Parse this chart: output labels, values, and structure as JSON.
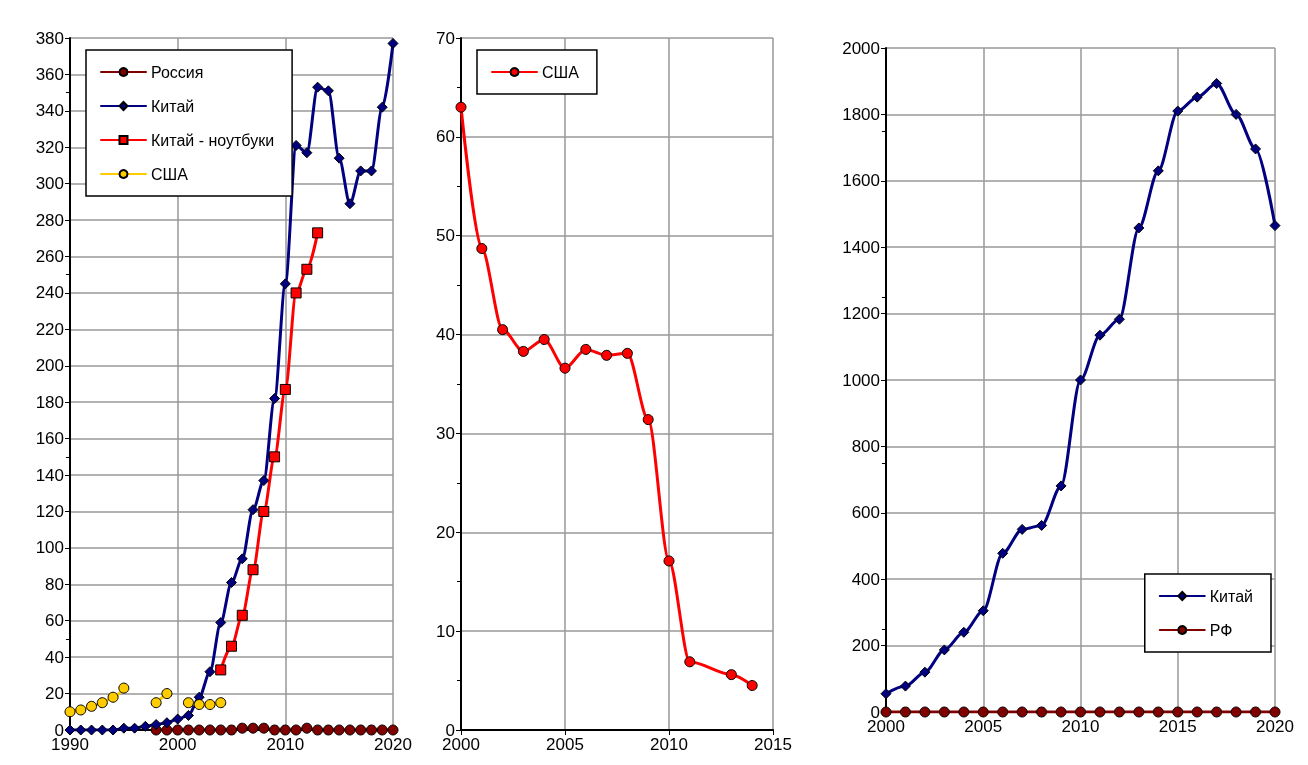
{
  "chart_data": [
    {
      "type": "line",
      "x": [
        1990,
        1991,
        1992,
        1993,
        1994,
        1995,
        1996,
        1997,
        1998,
        1999,
        2000,
        2001,
        2002,
        2003,
        2004,
        2005,
        2006,
        2007,
        2008,
        2009,
        2010,
        2011,
        2012,
        2013,
        2014,
        2015,
        2016,
        2017,
        2018,
        2019,
        2020
      ],
      "xlim": [
        1990,
        2020
      ],
      "xticks": [
        1990,
        2000,
        2010,
        2020
      ],
      "ylim": [
        0,
        380
      ],
      "yticks": [
        0,
        20,
        40,
        60,
        80,
        100,
        120,
        140,
        160,
        180,
        200,
        220,
        240,
        260,
        280,
        300,
        320,
        340,
        360,
        380
      ],
      "grid": true,
      "legend": "top left",
      "series": [
        {
          "name": "Россия",
          "color": "#800000",
          "marker": "circle",
          "x": [
            1998,
            1999,
            2000,
            2001,
            2002,
            2003,
            2004,
            2005,
            2006,
            2007,
            2008,
            2009,
            2010,
            2011,
            2012,
            2013,
            2014,
            2015,
            2016,
            2017,
            2018,
            2019,
            2020
          ],
          "values": [
            0,
            0,
            0,
            0,
            0,
            0,
            0,
            0,
            1,
            1,
            1,
            0,
            0,
            0,
            1,
            0,
            0,
            0,
            0,
            0,
            0,
            0,
            0
          ]
        },
        {
          "name": "Китай",
          "color": "#000080",
          "marker": "diamond",
          "values": [
            0,
            0,
            0,
            0,
            0,
            1,
            1,
            2,
            3,
            4,
            6,
            8,
            18,
            32,
            59,
            81,
            94,
            121,
            137,
            182,
            245,
            321,
            317,
            353,
            351,
            314,
            289,
            307,
            307,
            342,
            377
          ]
        },
        {
          "name": "Китай - ноутбуки",
          "color": "#ff0000",
          "marker": "square",
          "x": [
            2004,
            2005,
            2006,
            2007,
            2008,
            2009,
            2010,
            2011,
            2012,
            2013
          ],
          "values": [
            33,
            46,
            63,
            88,
            120,
            150,
            187,
            240,
            253,
            273
          ]
        },
        {
          "name": "США",
          "color": "#ffcc00",
          "marker": "circle",
          "x": [
            1990,
            1991,
            1992,
            1993,
            1994,
            1995,
            1996,
            1997,
            1998,
            1999,
            2000,
            2001,
            2002,
            2003,
            2004
          ],
          "values": [
            10,
            11,
            13,
            15,
            18,
            23,
            null,
            null,
            15,
            20,
            null,
            15,
            14,
            14,
            15
          ]
        }
      ]
    },
    {
      "type": "line",
      "xlim": [
        2000,
        2015
      ],
      "xticks": [
        2000,
        2005,
        2010,
        2015
      ],
      "ylim": [
        0,
        70
      ],
      "yticks": [
        0,
        10,
        20,
        30,
        40,
        50,
        60,
        70
      ],
      "grid": true,
      "legend": "top left",
      "series": [
        {
          "name": "США",
          "color": "#ff0000",
          "marker": "circle",
          "x": [
            2000,
            2001,
            2002,
            2003,
            2004,
            2005,
            2006,
            2007,
            2008,
            2009,
            2010,
            2011,
            2013,
            2014
          ],
          "values": [
            63,
            48.7,
            40.5,
            38.3,
            39.5,
            36.6,
            38.5,
            37.9,
            38.1,
            31.4,
            17.1,
            6.9,
            5.6,
            4.5
          ]
        }
      ]
    },
    {
      "type": "line",
      "x": [
        2000,
        2001,
        2002,
        2003,
        2004,
        2005,
        2006,
        2007,
        2008,
        2009,
        2010,
        2011,
        2012,
        2013,
        2014,
        2015,
        2016,
        2017,
        2018,
        2019,
        2020
      ],
      "xlim": [
        2000,
        2020
      ],
      "xticks": [
        2000,
        2005,
        2010,
        2015,
        2020
      ],
      "ylim": [
        0,
        2000
      ],
      "yticks": [
        0,
        200,
        400,
        600,
        800,
        1000,
        1200,
        1400,
        1600,
        1800,
        2000
      ],
      "grid": true,
      "legend": "bottom right",
      "series": [
        {
          "name": "Китай",
          "color": "#000080",
          "marker": "diamond",
          "values": [
            55,
            78,
            120,
            187,
            240,
            305,
            478,
            550,
            562,
            681,
            1000,
            1135,
            1183,
            1458,
            1630,
            1810,
            1852,
            1893,
            1800,
            1696,
            1465
          ]
        },
        {
          "name": "РФ",
          "color": "#800000",
          "marker": "circle",
          "values": [
            0,
            0,
            0,
            0,
            0,
            0,
            0,
            0,
            0,
            0,
            0,
            0,
            0,
            0,
            0,
            0,
            0,
            0,
            0,
            0,
            0
          ]
        }
      ]
    }
  ]
}
